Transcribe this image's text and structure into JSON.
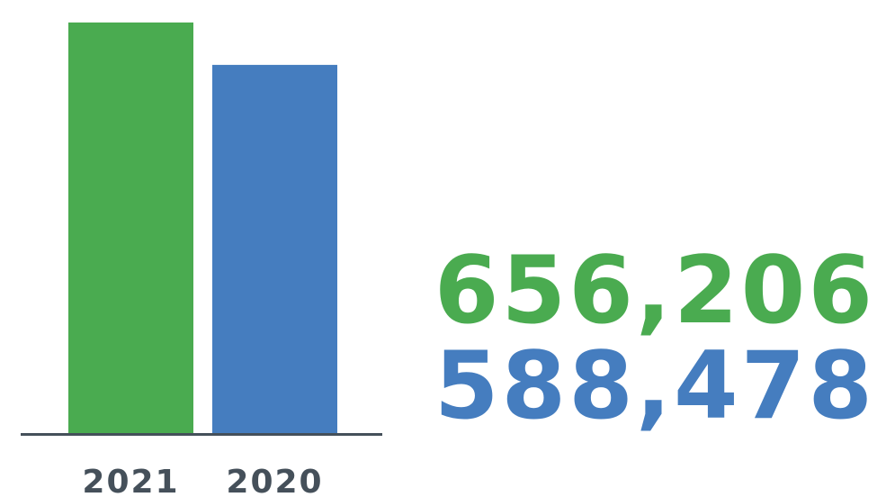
{
  "chart_data": {
    "type": "bar",
    "categories": [
      "2021",
      "2020"
    ],
    "values": [
      656206,
      588478
    ],
    "colors": [
      "#4aab50",
      "#457dbf"
    ],
    "ylim": [
      0,
      656206
    ],
    "grid": false,
    "legend": "none",
    "data_labels": [
      "656,206",
      "588,478"
    ]
  },
  "colors": {
    "baseline": "#45505a",
    "tick_text": "#45505a"
  }
}
